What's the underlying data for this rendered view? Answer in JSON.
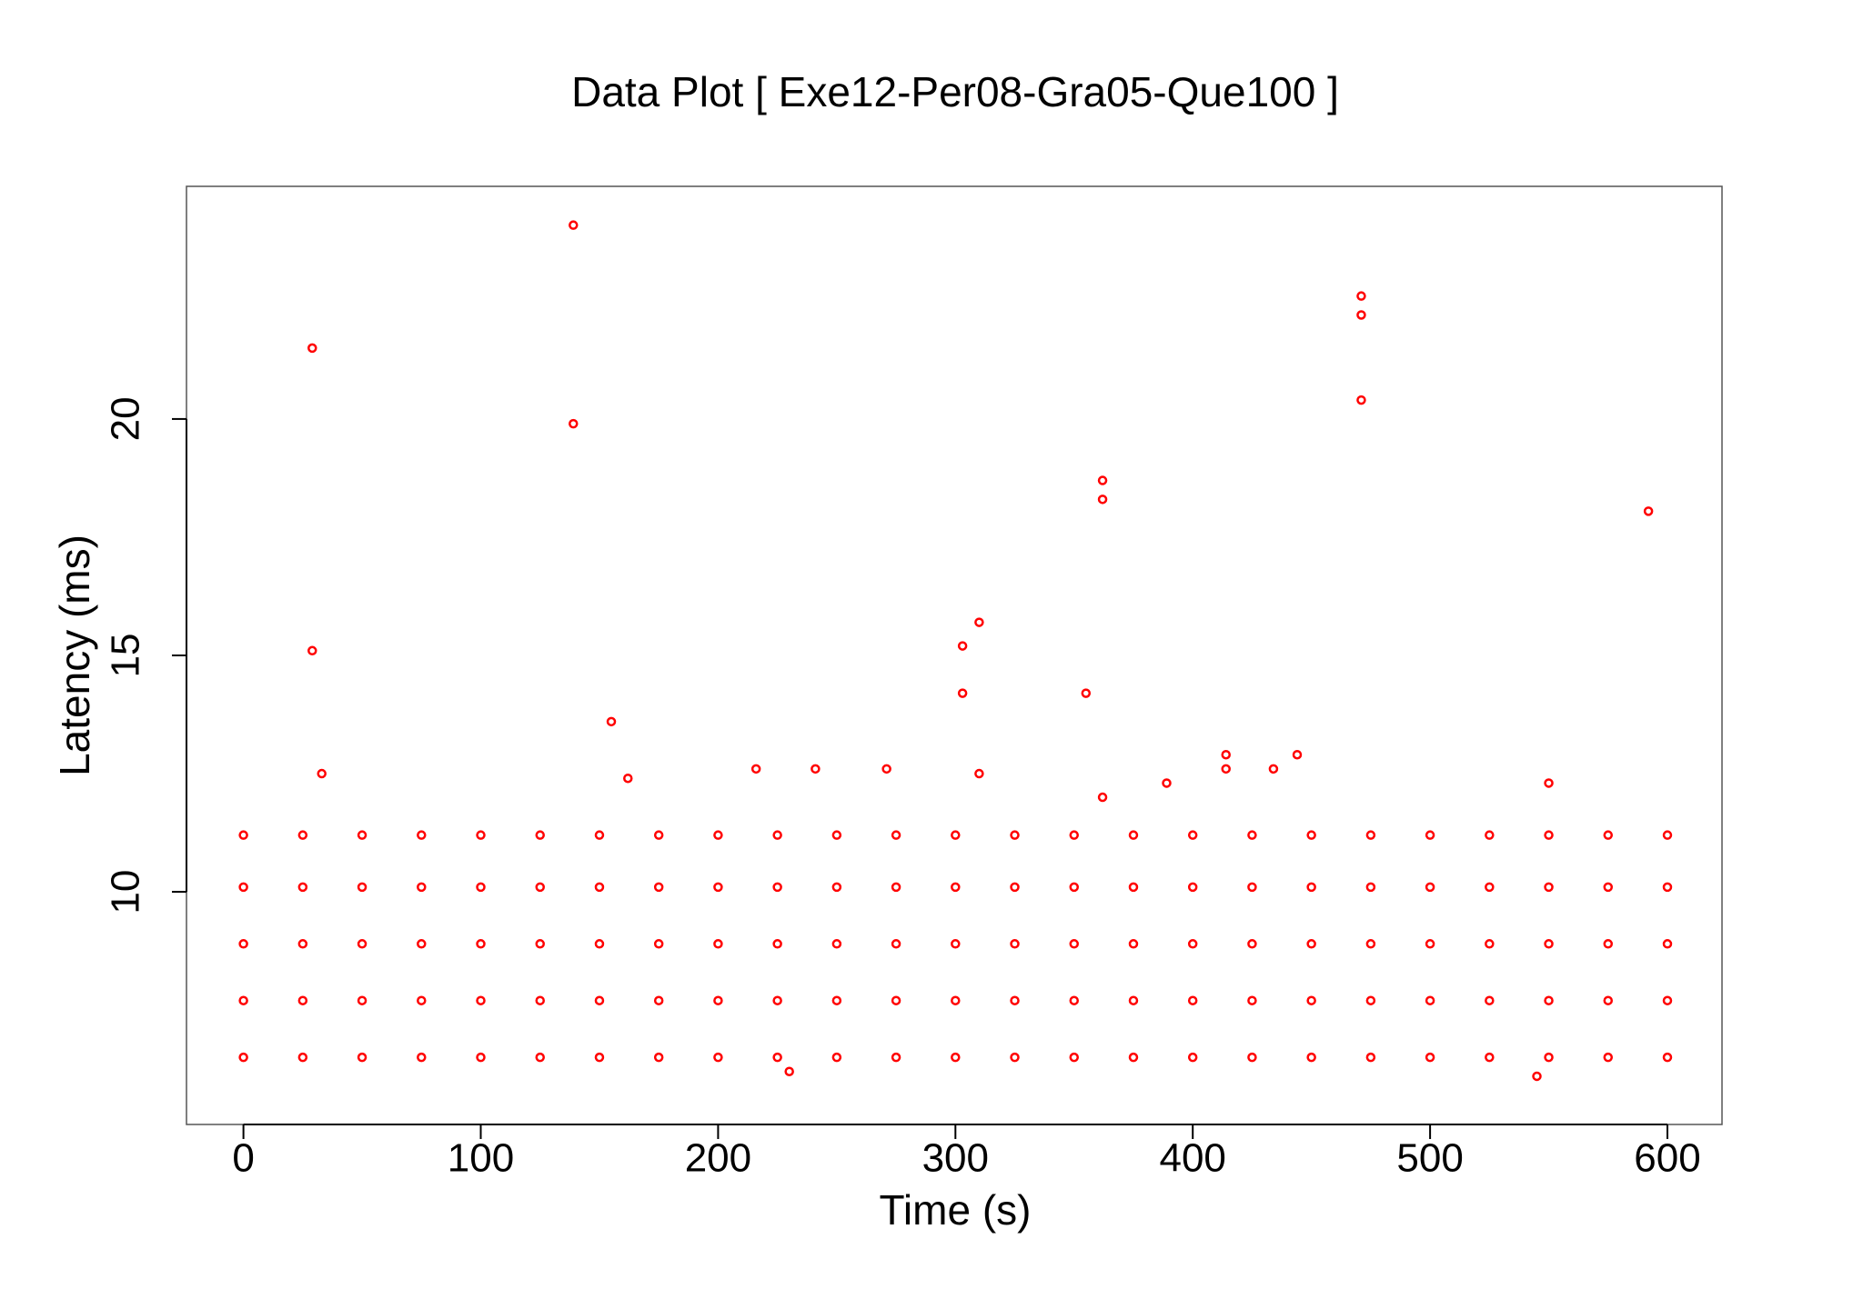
{
  "chart_data": {
    "type": "scatter",
    "title": "Data Plot [ Exe12-Per08-Gra05-Que100 ]",
    "x_label": "Time (s)",
    "y_label": "Latency (ms)",
    "xlim": [
      -24,
      623
    ],
    "ylim": [
      5.08,
      24.92
    ],
    "xticks": [
      0,
      100,
      200,
      300,
      400,
      500,
      600
    ],
    "yticks": [
      10,
      15,
      20
    ],
    "grid": false,
    "marker": "hollow-circle",
    "series": [
      {
        "color": "#ff0000",
        "x": [
          0,
          0,
          0,
          0,
          0,
          25,
          25,
          25,
          25,
          25,
          50,
          50,
          50,
          50,
          50,
          75,
          75,
          75,
          75,
          75,
          100,
          100,
          100,
          100,
          100,
          125,
          125,
          125,
          125,
          125,
          150,
          150,
          150,
          150,
          150,
          175,
          175,
          175,
          175,
          175,
          200,
          200,
          200,
          200,
          200,
          225,
          225,
          225,
          225,
          225,
          250,
          250,
          250,
          250,
          250,
          275,
          275,
          275,
          275,
          275,
          300,
          300,
          300,
          300,
          300,
          325,
          325,
          325,
          325,
          325,
          350,
          350,
          350,
          350,
          350,
          375,
          375,
          375,
          375,
          375,
          400,
          400,
          400,
          400,
          400,
          425,
          425,
          425,
          425,
          425,
          450,
          450,
          450,
          450,
          450,
          475,
          475,
          475,
          475,
          475,
          500,
          500,
          500,
          500,
          500,
          525,
          525,
          525,
          525,
          525,
          550,
          550,
          550,
          550,
          550,
          575,
          575,
          575,
          575,
          575,
          600,
          600,
          600,
          600,
          600,
          29,
          29,
          33,
          139,
          139,
          155,
          162,
          216,
          241,
          271,
          303,
          303,
          310,
          310,
          355,
          362,
          362,
          362,
          389,
          414,
          414,
          434,
          444,
          471,
          471,
          471,
          550,
          592,
          230,
          545
        ],
        "values": [
          6.5,
          7.7,
          8.9,
          10.1,
          11.2,
          6.5,
          7.7,
          8.9,
          10.1,
          11.2,
          6.5,
          7.7,
          8.9,
          10.1,
          11.2,
          6.5,
          7.7,
          8.9,
          10.1,
          11.2,
          6.5,
          7.7,
          8.9,
          10.1,
          11.2,
          6.5,
          7.7,
          8.9,
          10.1,
          11.2,
          6.5,
          7.7,
          8.9,
          10.1,
          11.2,
          6.5,
          7.7,
          8.9,
          10.1,
          11.2,
          6.5,
          7.7,
          8.9,
          10.1,
          11.2,
          6.5,
          7.7,
          8.9,
          10.1,
          11.2,
          6.5,
          7.7,
          8.9,
          10.1,
          11.2,
          6.5,
          7.7,
          8.9,
          10.1,
          11.2,
          6.5,
          7.7,
          8.9,
          10.1,
          11.2,
          6.5,
          7.7,
          8.9,
          10.1,
          11.2,
          6.5,
          7.7,
          8.9,
          10.1,
          11.2,
          6.5,
          7.7,
          8.9,
          10.1,
          11.2,
          6.5,
          7.7,
          8.9,
          10.1,
          11.2,
          6.5,
          7.7,
          8.9,
          10.1,
          11.2,
          6.5,
          7.7,
          8.9,
          10.1,
          11.2,
          6.5,
          7.7,
          8.9,
          10.1,
          11.2,
          6.5,
          7.7,
          8.9,
          10.1,
          11.2,
          6.5,
          7.7,
          8.9,
          10.1,
          11.2,
          6.5,
          7.7,
          8.9,
          10.1,
          11.2,
          6.5,
          7.7,
          8.9,
          10.1,
          11.2,
          6.5,
          7.7,
          8.9,
          10.1,
          11.2,
          21.5,
          15.1,
          12.5,
          24.1,
          19.9,
          13.6,
          12.4,
          12.6,
          12.6,
          12.6,
          15.2,
          14.2,
          15.7,
          12.5,
          14.2,
          18.7,
          18.3,
          12.0,
          12.3,
          12.9,
          12.6,
          12.6,
          12.9,
          22.6,
          22.2,
          20.4,
          12.3,
          18.05,
          6.2,
          6.1
        ]
      }
    ]
  }
}
